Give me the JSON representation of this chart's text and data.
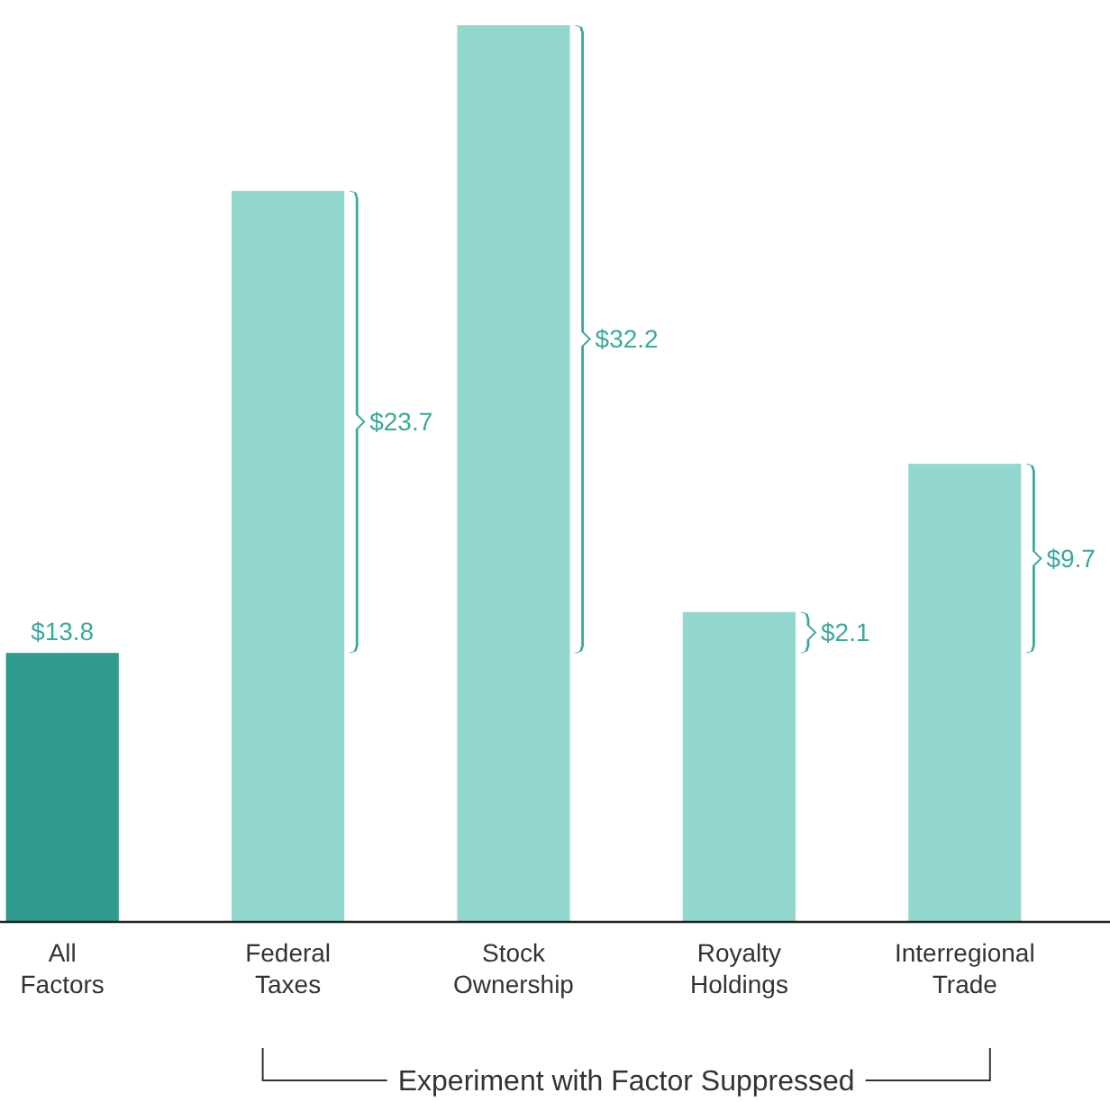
{
  "chart_data": {
    "type": "bar",
    "xlabel": "Experiment with Factor Suppressed",
    "categories": [
      "All Factors",
      "Federal Taxes",
      "Stock Ownership",
      "Royalty Holdings",
      "Interregional Trade"
    ],
    "values": [
      13.8,
      37.5,
      46.0,
      15.9,
      23.5
    ],
    "colors": [
      "#2e9b8c",
      "#93d8cf",
      "#93d8cf",
      "#93d8cf",
      "#93d8cf"
    ],
    "value_labels": [
      "$13.8",
      null,
      null,
      null,
      null
    ],
    "annotations": [
      "$23.7",
      "$32.2",
      "$2.1",
      "$9.7"
    ],
    "tick_labels": "x"
  }
}
